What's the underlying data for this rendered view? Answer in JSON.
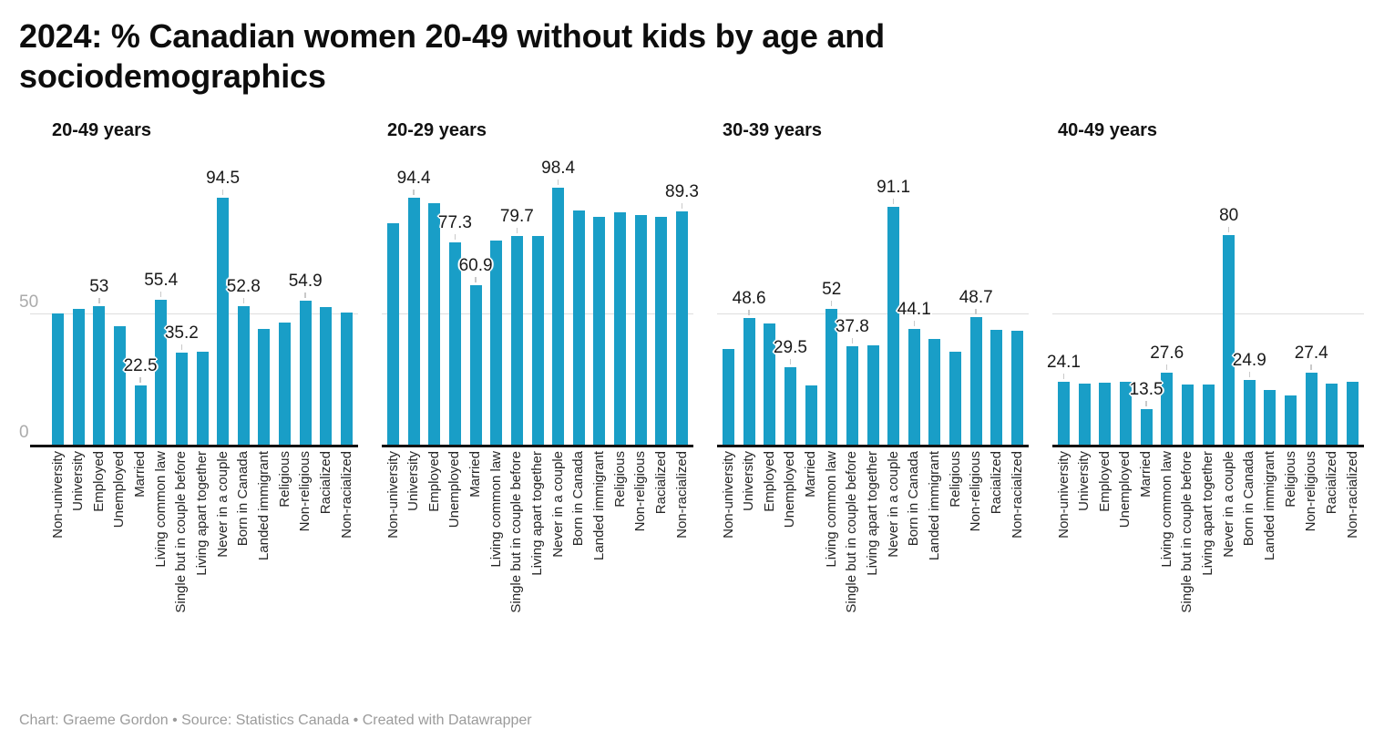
{
  "title": "2024: % Canadian women 20-49 without kids by age and sociodemographics",
  "footer": {
    "chart_credit": "Chart: Graeme Gordon",
    "separator1": " • ",
    "source": "Source: Statistics Canada",
    "separator2": "  • ",
    "created": "Created with Datawrapper"
  },
  "colors": {
    "bar": "#199ec7",
    "gridline": "#dedede",
    "axis_line": "#121212",
    "value_label": "#1a1a1a",
    "y_tick_label": "#ababab",
    "x_tick_label": "#262626",
    "footer_text": "#9b9b9b"
  },
  "chart_data": {
    "type": "bar",
    "grid": true,
    "ylim": [
      0,
      100
    ],
    "yticks": [
      {
        "value": 0,
        "label": "0"
      },
      {
        "value": 50,
        "label": "50"
      }
    ],
    "ytick_labels_on_first_panel_only": true,
    "categories": [
      "Non-university",
      "University",
      "Employed",
      "Unemployed",
      "Married",
      "Living common law",
      "Single but in couple before",
      "Living apart together",
      "Never in a couple",
      "Born in Canada",
      "Landed immigrant",
      "Religious",
      "Non-religious",
      "Racialized",
      "Non-racialized"
    ],
    "panels": [
      {
        "title": "20-49 years",
        "values": [
          50.1,
          51.9,
          53,
          45.3,
          22.5,
          55.4,
          35.2,
          35.4,
          94.5,
          52.8,
          44.4,
          46.6,
          54.9,
          52.6,
          50.6
        ],
        "value_labels": [
          null,
          null,
          "53",
          null,
          "22.5",
          "55.4",
          "35.2",
          null,
          "94.5",
          "52.8",
          null,
          null,
          "54.9",
          null,
          null
        ]
      },
      {
        "title": "20-29 years",
        "values": [
          84.8,
          94.4,
          92.3,
          77.3,
          60.9,
          78,
          79.7,
          79.7,
          98.4,
          89.5,
          87.1,
          88.8,
          87.9,
          87.1,
          89.3
        ],
        "value_labels": [
          null,
          "94.4",
          null,
          "77.3",
          "60.9",
          null,
          "79.7",
          null,
          "98.4",
          null,
          null,
          null,
          null,
          null,
          "89.3"
        ]
      },
      {
        "title": "30-39 years",
        "values": [
          36.7,
          48.6,
          46.5,
          29.5,
          22.6,
          52,
          37.8,
          37.9,
          91.1,
          44.1,
          40.5,
          35.6,
          48.7,
          43.9,
          43.4
        ],
        "value_labels": [
          null,
          "48.6",
          null,
          "29.5",
          null,
          "52",
          "37.8",
          null,
          "91.1",
          "44.1",
          null,
          null,
          "48.7",
          null,
          null
        ]
      },
      {
        "title": "40-49 years",
        "values": [
          24.1,
          23.2,
          23.6,
          24,
          13.5,
          27.6,
          23,
          23,
          80,
          24.9,
          20.8,
          18.9,
          27.4,
          23.5,
          24
        ],
        "value_labels": [
          "24.1",
          null,
          null,
          null,
          "13.5",
          "27.6",
          null,
          null,
          "80",
          "24.9",
          null,
          null,
          "27.4",
          null,
          null
        ]
      }
    ]
  }
}
